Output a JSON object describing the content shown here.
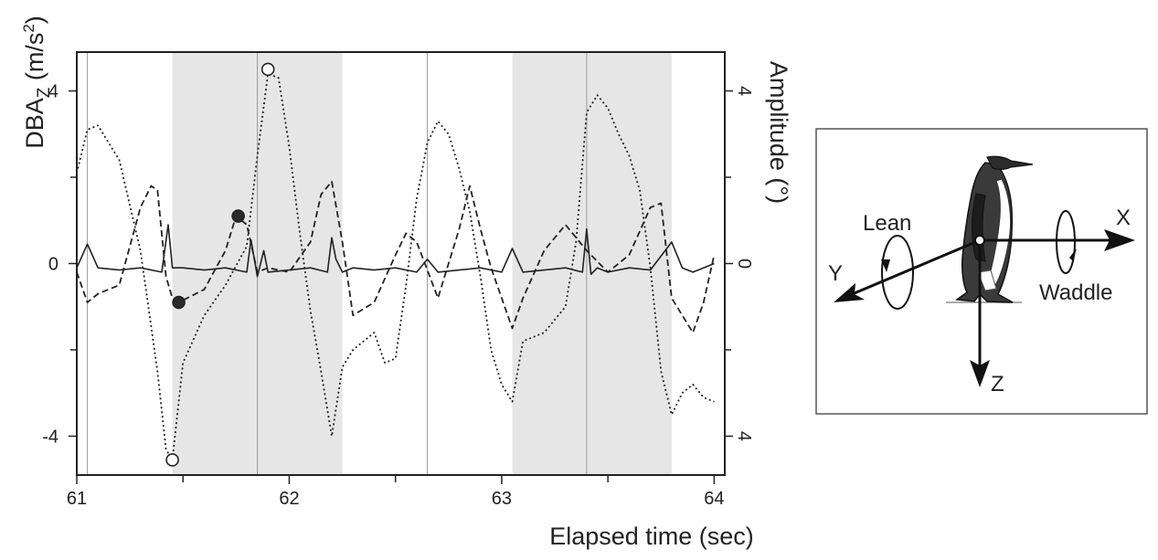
{
  "chart_data": {
    "type": "line",
    "title": "",
    "xlabel": "Elapsed time (sec)",
    "ylabel_left": {
      "main": "DBA",
      "sub": "Z",
      "unit_open": " (m/s",
      "unit_sup": "2",
      "unit_close": ")"
    },
    "ylabel_right": "Amplitude (°)",
    "xlim": [
      61.0,
      64.05
    ],
    "ylim": [
      -4.9,
      4.9
    ],
    "x_ticks": [
      61,
      62,
      63,
      64
    ],
    "x_minor_ticks": [
      61.5,
      62.5,
      63.5
    ],
    "y_ticks_left": [
      "4",
      "0",
      "-4"
    ],
    "y_ticks_left_values": [
      4,
      0,
      -4
    ],
    "y_ticks_right": [
      "4",
      "0",
      "4"
    ],
    "y_ticks_right_values": [
      4,
      0,
      -4
    ],
    "y_minor_ticks": [
      2,
      -2
    ],
    "grid": false,
    "shaded_regions": [
      [
        61.45,
        62.25
      ],
      [
        63.05,
        63.8
      ]
    ],
    "vertical_lines": [
      61.05,
      61.85,
      62.65,
      63.4
    ],
    "series": [
      {
        "style": "solid",
        "x": [
          61.0,
          61.05,
          61.1,
          61.2,
          61.3,
          61.4,
          61.43,
          61.45,
          61.5,
          61.6,
          61.7,
          61.8,
          61.82,
          61.85,
          61.88,
          61.9,
          62.0,
          62.1,
          62.18,
          62.2,
          62.22,
          62.25,
          62.3,
          62.4,
          62.5,
          62.6,
          62.65,
          62.7,
          62.8,
          62.9,
          63.0,
          63.05,
          63.1,
          63.2,
          63.3,
          63.38,
          63.4,
          63.42,
          63.45,
          63.5,
          63.6,
          63.7,
          63.8,
          63.85,
          63.9,
          64.0
        ],
        "y": [
          -0.1,
          0.45,
          -0.1,
          -0.15,
          -0.1,
          -0.2,
          0.9,
          -0.1,
          -0.1,
          -0.15,
          -0.1,
          -0.2,
          0.55,
          -0.3,
          0.3,
          -0.2,
          -0.15,
          -0.1,
          -0.2,
          0.6,
          0.1,
          -0.2,
          -0.1,
          -0.15,
          -0.1,
          -0.2,
          0.1,
          -0.2,
          -0.15,
          -0.1,
          -0.2,
          0.35,
          -0.2,
          -0.15,
          -0.1,
          -0.2,
          0.8,
          -0.25,
          -0.1,
          -0.2,
          -0.1,
          -0.15,
          0.5,
          -0.1,
          -0.2,
          0.0
        ]
      },
      {
        "style": "dashed",
        "x": [
          61.0,
          61.05,
          61.1,
          61.2,
          61.3,
          61.35,
          61.38,
          61.42,
          61.45,
          61.5,
          61.6,
          61.7,
          61.75,
          61.8,
          61.85,
          61.9,
          62.0,
          62.1,
          62.15,
          62.2,
          62.25,
          62.3,
          62.4,
          62.5,
          62.55,
          62.6,
          62.7,
          62.8,
          62.85,
          62.9,
          62.95,
          63.0,
          63.05,
          63.1,
          63.2,
          63.3,
          63.4,
          63.5,
          63.6,
          63.7,
          63.75,
          63.8,
          63.9,
          63.95,
          64.0
        ],
        "y": [
          -0.2,
          -0.9,
          -0.7,
          -0.5,
          1.3,
          1.8,
          1.7,
          -0.3,
          -0.8,
          -0.85,
          -0.6,
          0.3,
          1.1,
          0.9,
          -0.2,
          -0.1,
          -0.2,
          0.5,
          1.6,
          1.9,
          0.5,
          -1.2,
          -0.9,
          0.2,
          0.7,
          0.5,
          -0.8,
          0.8,
          1.8,
          0.8,
          -0.1,
          -0.8,
          -1.5,
          -0.8,
          0.3,
          0.9,
          0.3,
          -0.2,
          0.2,
          1.3,
          1.4,
          -0.8,
          -1.6,
          -0.9,
          0.2
        ]
      },
      {
        "style": "dotted",
        "x": [
          61.0,
          61.05,
          61.1,
          61.2,
          61.3,
          61.38,
          61.42,
          61.45,
          61.5,
          61.6,
          61.7,
          61.8,
          61.85,
          61.9,
          61.95,
          62.0,
          62.05,
          62.1,
          62.15,
          62.2,
          62.25,
          62.3,
          62.4,
          62.45,
          62.5,
          62.55,
          62.6,
          62.65,
          62.7,
          62.75,
          62.8,
          62.85,
          62.9,
          62.95,
          63.0,
          63.05,
          63.1,
          63.2,
          63.3,
          63.35,
          63.4,
          63.45,
          63.5,
          63.55,
          63.6,
          63.65,
          63.7,
          63.75,
          63.8,
          63.85,
          63.9,
          63.95,
          64.0
        ],
        "y": [
          2.1,
          3.1,
          3.2,
          2.4,
          0.3,
          -2.5,
          -4.3,
          -4.55,
          -2.3,
          -1.2,
          -0.5,
          0.4,
          2.5,
          4.4,
          4.3,
          2.7,
          0.7,
          -1.1,
          -2.5,
          -4.0,
          -2.4,
          -2.0,
          -1.6,
          -2.3,
          -2.2,
          -0.5,
          1.5,
          2.8,
          3.3,
          3.0,
          2.2,
          1.2,
          -0.3,
          -2.0,
          -2.8,
          -3.2,
          -1.8,
          -1.6,
          -1.0,
          0.5,
          3.5,
          3.9,
          3.6,
          3.0,
          2.5,
          1.7,
          -0.1,
          -2.5,
          -3.5,
          -3.0,
          -2.8,
          -3.1,
          -3.2
        ]
      }
    ],
    "markers": [
      {
        "x": 61.45,
        "y": -4.55,
        "fill": "open"
      },
      {
        "x": 61.48,
        "y": -0.9,
        "fill": "filled"
      },
      {
        "x": 61.76,
        "y": 1.1,
        "fill": "filled"
      },
      {
        "x": 61.9,
        "y": 4.5,
        "fill": "open"
      }
    ]
  },
  "diagram": {
    "labels": {
      "lean": "Lean",
      "waddle": "Waddle",
      "x_axis": "X",
      "y_axis": "Y",
      "z_axis": "Z"
    }
  }
}
